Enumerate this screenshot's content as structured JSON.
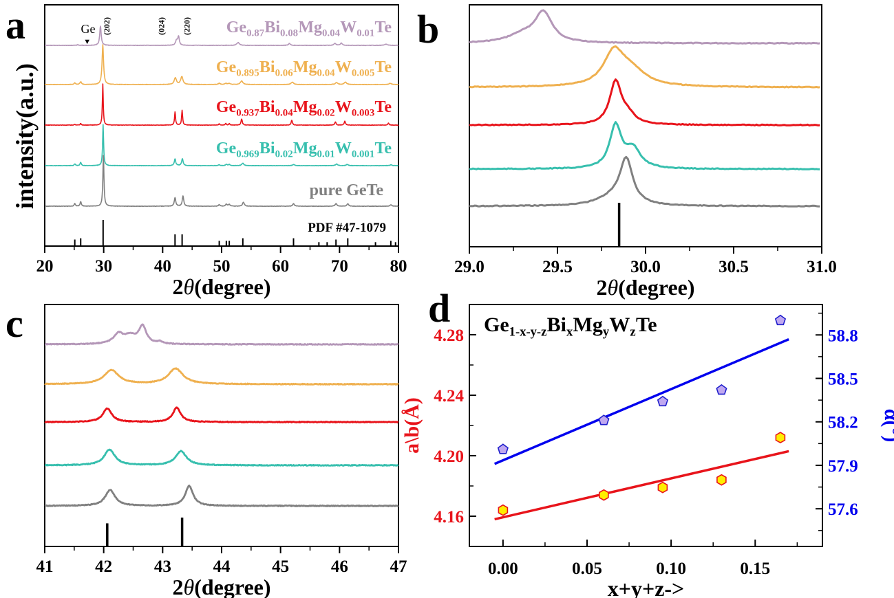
{
  "panel_letters": [
    "a",
    "b",
    "c",
    "d"
  ],
  "chart_data": [
    {
      "panel": "a",
      "type": "line",
      "xlabel_prefix": "2",
      "xlabel_symbol": "θ",
      "xlabel_unit": "(degree)",
      "ylabel": "intensity(a.u.)",
      "xlim": [
        20,
        80
      ],
      "xticks": [
        20,
        30,
        40,
        50,
        60,
        70,
        80
      ],
      "annotations": {
        "ge": "Ge",
        "ge_marker": "▼",
        "ge_position": 27.2,
        "hkl": [
          {
            "label": "(202)",
            "x": 30.5
          },
          {
            "label": "(024)",
            "x": 39.8
          },
          {
            "label": "(220)",
            "x": 44.1
          }
        ]
      },
      "reference_label": "PDF #47-1079",
      "reference_peaks": [
        [
          25.1,
          0.25
        ],
        [
          26.1,
          0.3
        ],
        [
          29.9,
          1.0
        ],
        [
          42.1,
          0.45
        ],
        [
          43.3,
          0.45
        ],
        [
          49.6,
          0.2
        ],
        [
          50.8,
          0.2
        ],
        [
          51.3,
          0.2
        ],
        [
          53.6,
          0.3
        ],
        [
          62.2,
          0.3
        ],
        [
          66.5,
          0.15
        ],
        [
          67.9,
          0.15
        ],
        [
          69.4,
          0.25
        ],
        [
          71.4,
          0.3
        ],
        [
          76.1,
          0.15
        ],
        [
          78.7,
          0.2
        ],
        [
          79.5,
          0.15
        ]
      ],
      "series": [
        {
          "parts": [
            [
              "Ge",
              "0.87"
            ],
            [
              "Bi",
              "0.08"
            ],
            [
              "Mg",
              "0.04"
            ],
            [
              "W",
              "0.01"
            ],
            [
              "Te",
              ""
            ]
          ],
          "color": "#b497b8",
          "peaks": [
            [
              25.6,
              0.03,
              0.3
            ],
            [
              29.45,
              1.0,
              0.3
            ],
            [
              42.35,
              0.25,
              0.4
            ],
            [
              42.7,
              0.45,
              0.3
            ],
            [
              52.8,
              0.15,
              0.5
            ],
            [
              61.5,
              0.1,
              0.4
            ],
            [
              69.2,
              0.1,
              0.4
            ],
            [
              70.3,
              0.12,
              0.4
            ],
            [
              77.9,
              0.06,
              0.6
            ]
          ]
        },
        {
          "parts": [
            [
              "Ge",
              "0.895"
            ],
            [
              "Bi",
              "0.06"
            ],
            [
              "Mg",
              "0.04"
            ],
            [
              "W",
              "0.005"
            ],
            [
              "Te",
              ""
            ]
          ],
          "color": "#efb04f",
          "peaks": [
            [
              25.1,
              0.04,
              0.3
            ],
            [
              26.1,
              0.07,
              0.3
            ],
            [
              29.85,
              1.0,
              0.3
            ],
            [
              42.15,
              0.17,
              0.45
            ],
            [
              43.25,
              0.2,
              0.45
            ],
            [
              49.6,
              0.03,
              0.4
            ],
            [
              50.7,
              0.03,
              0.4
            ],
            [
              51.3,
              0.03,
              0.4
            ],
            [
              53.4,
              0.09,
              0.5
            ],
            [
              62.0,
              0.06,
              0.5
            ],
            [
              69.5,
              0.05,
              0.5
            ],
            [
              71.0,
              0.06,
              0.5
            ],
            [
              78.6,
              0.03,
              0.5
            ]
          ]
        },
        {
          "parts": [
            [
              "Ge",
              "0.937"
            ],
            [
              "Bi",
              "0.04"
            ],
            [
              "Mg",
              "0.02"
            ],
            [
              "W",
              "0.003"
            ],
            [
              "Te",
              ""
            ]
          ],
          "color": "#e8141b",
          "peaks": [
            [
              25.1,
              0.02,
              0.2
            ],
            [
              26.1,
              0.04,
              0.2
            ],
            [
              29.85,
              1.0,
              0.18
            ],
            [
              42.1,
              0.32,
              0.2
            ],
            [
              43.3,
              0.36,
              0.2
            ],
            [
              49.6,
              0.03,
              0.2
            ],
            [
              50.7,
              0.04,
              0.2
            ],
            [
              51.3,
              0.04,
              0.2
            ],
            [
              53.4,
              0.15,
              0.25
            ],
            [
              61.9,
              0.12,
              0.25
            ],
            [
              69.3,
              0.08,
              0.25
            ],
            [
              70.9,
              0.1,
              0.25
            ],
            [
              78.3,
              0.05,
              0.25
            ]
          ]
        },
        {
          "parts": [
            [
              "Ge",
              "0.969"
            ],
            [
              "Bi",
              "0.02"
            ],
            [
              "Mg",
              "0.01"
            ],
            [
              "W",
              "0.001"
            ],
            [
              "Te",
              ""
            ]
          ],
          "color": "#37bfae",
          "peaks": [
            [
              25.1,
              0.04,
              0.25
            ],
            [
              26.1,
              0.08,
              0.25
            ],
            [
              29.9,
              1.0,
              0.2
            ],
            [
              42.1,
              0.16,
              0.3
            ],
            [
              43.35,
              0.17,
              0.3
            ],
            [
              49.6,
              0.02,
              0.3
            ],
            [
              50.8,
              0.03,
              0.3
            ],
            [
              51.3,
              0.03,
              0.3
            ],
            [
              53.6,
              0.06,
              0.4
            ],
            [
              62.2,
              0.03,
              0.4
            ],
            [
              69.5,
              0.04,
              0.4
            ],
            [
              71.3,
              0.03,
              0.4
            ],
            [
              78.7,
              0.02,
              0.4
            ]
          ]
        },
        {
          "label": "pure GeTe",
          "color": "#808080",
          "peaks": [
            [
              25.1,
              0.05,
              0.25
            ],
            [
              26.1,
              0.09,
              0.25
            ],
            [
              29.95,
              1.0,
              0.22
            ],
            [
              42.1,
              0.17,
              0.3
            ],
            [
              43.45,
              0.2,
              0.3
            ],
            [
              49.6,
              0.03,
              0.3
            ],
            [
              50.8,
              0.04,
              0.3
            ],
            [
              51.3,
              0.04,
              0.3
            ],
            [
              53.7,
              0.08,
              0.35
            ],
            [
              62.2,
              0.05,
              0.35
            ],
            [
              69.4,
              0.05,
              0.35
            ],
            [
              71.4,
              0.05,
              0.35
            ],
            [
              78.7,
              0.03,
              0.35
            ]
          ]
        }
      ]
    },
    {
      "panel": "b",
      "type": "line",
      "xlabel_prefix": "2",
      "xlabel_symbol": "θ",
      "xlabel_unit": "(degree)",
      "xlim": [
        29.0,
        31.0
      ],
      "xticks": [
        "29.0",
        "29.5",
        "30.0",
        "30.5",
        "31.0"
      ],
      "reference_peaks": [
        [
          29.85,
          1.0
        ]
      ],
      "series": [
        {
          "color": "#b497b8",
          "peaks": [
            [
              29.42,
              1.0,
              0.12
            ],
            [
              29.3,
              0.25,
              0.2
            ]
          ]
        },
        {
          "color": "#efb04f",
          "peaks": [
            [
              29.82,
              1.0,
              0.14
            ],
            [
              29.92,
              0.45,
              0.2
            ]
          ]
        },
        {
          "color": "#e8141b",
          "peaks": [
            [
              29.83,
              1.0,
              0.08
            ],
            [
              29.9,
              0.2,
              0.1
            ]
          ]
        },
        {
          "color": "#37bfae",
          "peaks": [
            [
              29.83,
              1.0,
              0.08
            ],
            [
              29.93,
              0.45,
              0.1
            ]
          ]
        },
        {
          "color": "#808080",
          "peaks": [
            [
              29.89,
              1.0,
              0.09
            ],
            [
              29.8,
              0.15,
              0.2
            ]
          ]
        }
      ]
    },
    {
      "panel": "c",
      "type": "line",
      "xlabel_prefix": "2",
      "xlabel_symbol": "θ",
      "xlabel_unit": "(degree)",
      "xlim": [
        41,
        47
      ],
      "xticks": [
        41,
        42,
        43,
        44,
        45,
        46,
        47
      ],
      "reference_peaks": [
        [
          42.06,
          0.8
        ],
        [
          43.33,
          1.0
        ]
      ],
      "series": [
        {
          "color": "#b497b8",
          "peaks": [
            [
              42.25,
              0.55,
              0.2
            ],
            [
              42.45,
              0.45,
              0.25
            ],
            [
              42.66,
              1.0,
              0.15
            ],
            [
              42.95,
              0.12,
              0.1
            ]
          ]
        },
        {
          "color": "#efb04f",
          "peaks": [
            [
              42.13,
              0.9,
              0.3
            ],
            [
              43.22,
              1.0,
              0.3
            ]
          ]
        },
        {
          "color": "#e8141b",
          "peaks": [
            [
              42.06,
              0.95,
              0.18
            ],
            [
              43.24,
              1.0,
              0.16
            ]
          ]
        },
        {
          "color": "#37bfae",
          "peaks": [
            [
              42.1,
              1.0,
              0.22
            ],
            [
              43.31,
              0.9,
              0.22
            ]
          ]
        },
        {
          "color": "#808080",
          "peaks": [
            [
              42.11,
              0.8,
              0.2
            ],
            [
              43.45,
              1.0,
              0.16
            ]
          ]
        }
      ]
    },
    {
      "panel": "d",
      "type": "scatter",
      "title_parts": [
        [
          "Ge",
          "1-x-y-z"
        ],
        [
          "Bi",
          "x"
        ],
        [
          "Mg",
          "y"
        ],
        [
          "W",
          "z"
        ],
        [
          "Te",
          ""
        ]
      ],
      "xlabel": "x+y+z->",
      "ylabel_left": "a\\b(Å)",
      "ylabel_right": "α(°)",
      "xlim": [
        -0.02,
        0.19
      ],
      "ylim_left": [
        4.14,
        4.3
      ],
      "ylim_right": [
        57.34,
        59.01
      ],
      "xticks": [
        "0.00",
        "0.05",
        "0.10",
        "0.15"
      ],
      "yticks_left": [
        "4.16",
        "4.20",
        "4.24",
        "4.28"
      ],
      "yticks_right": [
        "57.6",
        "57.9",
        "58.2",
        "58.5",
        "58.8"
      ],
      "left_color": "#e8141b",
      "right_color": "#0000ee",
      "series": [
        {
          "axis": "left",
          "marker": "hexagon",
          "fill": "#ffee00",
          "stroke": "#e8141b",
          "x": [
            0.0,
            0.06,
            0.095,
            0.13,
            0.165
          ],
          "y": [
            4.164,
            4.174,
            4.179,
            4.184,
            4.212
          ],
          "fit": {
            "x": [
              -0.005,
              0.17
            ],
            "y": [
              4.158,
              4.203
            ]
          }
        },
        {
          "axis": "right",
          "marker": "pentagon",
          "fill": "#c0a8f0",
          "stroke": "#2020cc",
          "x": [
            0.0,
            0.06,
            0.095,
            0.13,
            0.165
          ],
          "y": [
            58.01,
            58.21,
            58.34,
            58.42,
            58.9
          ],
          "fit": {
            "x": [
              -0.005,
              0.17
            ],
            "y": [
              57.91,
              58.77
            ]
          }
        }
      ]
    }
  ]
}
